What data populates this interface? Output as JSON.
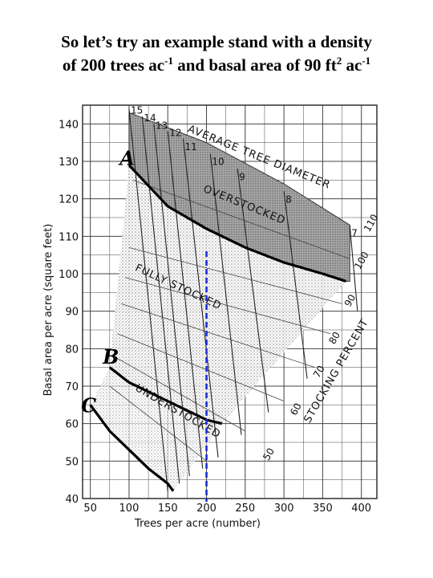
{
  "slide": {
    "title_line1": "So let’s try an example stand with a density",
    "title_line2_a": "of 200 trees ac",
    "title_line2_sup1": "-1",
    "title_line2_b": " and basal area of 90 ft",
    "title_line2_sup2": "2",
    "title_line2_c": " ac",
    "title_line2_sup3": "-1"
  },
  "chart_data": {
    "type": "line",
    "title": "",
    "xlabel": "Trees per acre (number)",
    "ylabel": "Basal area per acre (square feet)",
    "xlim": [
      40,
      420
    ],
    "ylim": [
      40,
      145
    ],
    "xticks": [
      50,
      100,
      150,
      200,
      250,
      300,
      350,
      400
    ],
    "yticks": [
      40,
      50,
      60,
      70,
      80,
      90,
      100,
      110,
      120,
      130,
      140
    ],
    "grid": true,
    "series": [
      {
        "name": "A",
        "x": [
          100,
          150,
          200,
          250,
          300,
          350,
          380
        ],
        "y": [
          129,
          118,
          112,
          107,
          103,
          100,
          98
        ]
      },
      {
        "name": "B",
        "x": [
          75,
          100,
          150,
          200,
          220
        ],
        "y": [
          75,
          71,
          66,
          61,
          60
        ]
      },
      {
        "name": "C",
        "x": [
          50,
          75,
          100,
          125,
          150,
          157
        ],
        "y": [
          65,
          58,
          53,
          48,
          44,
          42
        ]
      }
    ],
    "diameter_labels": [
      "15",
      "14",
      "13",
      "12",
      "11",
      "10",
      "9",
      "8",
      "7"
    ],
    "stocking_labels": [
      "110",
      "100",
      "90",
      "80",
      "70",
      "60",
      "50"
    ],
    "annotations": {
      "top": "AVERAGE TREE DIAMETER",
      "overstocked": "OVERSTOCKED",
      "fully": "FULLY STOCKED",
      "under": "UNDERSTOCKED",
      "stocking": "STOCKING PERCENT"
    },
    "example_point": {
      "x": 200,
      "y": 90
    }
  },
  "colors": {
    "example_line": "#1a2fd6",
    "grid": "#444444",
    "shade": "#bdbdbd"
  }
}
